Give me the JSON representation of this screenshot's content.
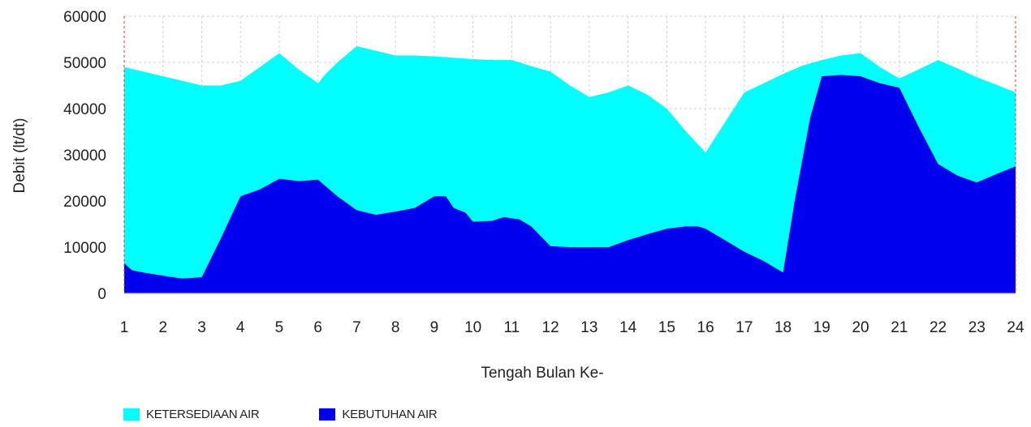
{
  "chart_data": {
    "type": "area",
    "xlabel": "Tengah Bulan Ke-",
    "ylabel": "Debit (lt/dt)",
    "ylim": [
      0,
      60000
    ],
    "yticks": [
      0,
      10000,
      20000,
      30000,
      40000,
      50000,
      60000
    ],
    "xlim": [
      1,
      24
    ],
    "xticks": [
      "1",
      "2",
      "3",
      "4",
      "5",
      "6",
      "7",
      "8",
      "9",
      "10",
      "11",
      "12",
      "13",
      "14",
      "15",
      "16",
      "17",
      "18",
      "19",
      "20",
      "21",
      "22",
      "23",
      "24"
    ],
    "grid": true,
    "legend_position": "bottom-left",
    "series": [
      {
        "name": "KETERSEDIAAN AIR",
        "color": "#00ffff",
        "points": [
          [
            1,
            49000
          ],
          [
            2,
            47000
          ],
          [
            2.5,
            46000
          ],
          [
            3,
            45000
          ],
          [
            3.5,
            45000
          ],
          [
            4,
            46000
          ],
          [
            4.5,
            49000
          ],
          [
            5,
            52000
          ],
          [
            5.5,
            48500
          ],
          [
            6,
            45500
          ],
          [
            6.2,
            47500
          ],
          [
            6.5,
            50000
          ],
          [
            7,
            53500
          ],
          [
            7.5,
            52500
          ],
          [
            8,
            51500
          ],
          [
            8.5,
            51500
          ],
          [
            9,
            51300
          ],
          [
            9.5,
            51000
          ],
          [
            10,
            50700
          ],
          [
            10.5,
            50500
          ],
          [
            11,
            50500
          ],
          [
            11.5,
            49200
          ],
          [
            12,
            48000
          ],
          [
            12.5,
            45000
          ],
          [
            13,
            42500
          ],
          [
            13.5,
            43500
          ],
          [
            14,
            45000
          ],
          [
            14.5,
            43000
          ],
          [
            15,
            40000
          ],
          [
            15.5,
            35000
          ],
          [
            16,
            30500
          ],
          [
            16.5,
            37000
          ],
          [
            17,
            43500
          ],
          [
            17.5,
            45500
          ],
          [
            18,
            47500
          ],
          [
            18.5,
            49300
          ],
          [
            19,
            50500
          ],
          [
            19.5,
            51500
          ],
          [
            20,
            52000
          ],
          [
            20.5,
            49000
          ],
          [
            21,
            46500
          ],
          [
            21.5,
            48500
          ],
          [
            22,
            50500
          ],
          [
            22.5,
            48700
          ],
          [
            23,
            46800
          ],
          [
            23.5,
            45200
          ],
          [
            24,
            43500
          ]
        ]
      },
      {
        "name": "KEBUTUHAN AIR",
        "color": "#0000ee",
        "points": [
          [
            1,
            6500
          ],
          [
            1.2,
            5000
          ],
          [
            1.5,
            4500
          ],
          [
            2,
            3800
          ],
          [
            2.5,
            3200
          ],
          [
            3,
            3500
          ],
          [
            3.5,
            12000
          ],
          [
            4,
            21000
          ],
          [
            4.5,
            22500
          ],
          [
            5,
            24800
          ],
          [
            5.5,
            24300
          ],
          [
            6,
            24600
          ],
          [
            6.5,
            21000
          ],
          [
            7,
            18000
          ],
          [
            7.5,
            17000
          ],
          [
            8,
            17700
          ],
          [
            8.5,
            18500
          ],
          [
            9,
            21000
          ],
          [
            9.3,
            21000
          ],
          [
            9.5,
            18500
          ],
          [
            9.8,
            17500
          ],
          [
            10,
            15500
          ],
          [
            10.5,
            15700
          ],
          [
            10.8,
            16500
          ],
          [
            11.2,
            16000
          ],
          [
            11.5,
            14500
          ],
          [
            12,
            10200
          ],
          [
            12.5,
            10000
          ],
          [
            13,
            10000
          ],
          [
            13.5,
            10000
          ],
          [
            14,
            11500
          ],
          [
            14.5,
            12800
          ],
          [
            15,
            14000
          ],
          [
            15.5,
            14500
          ],
          [
            15.8,
            14500
          ],
          [
            16,
            14000
          ],
          [
            16.5,
            11500
          ],
          [
            17,
            9000
          ],
          [
            17.5,
            7000
          ],
          [
            18,
            4500
          ],
          [
            18.3,
            20000
          ],
          [
            18.7,
            38000
          ],
          [
            19,
            47000
          ],
          [
            19.5,
            47300
          ],
          [
            20,
            47000
          ],
          [
            20.5,
            45500
          ],
          [
            21,
            44500
          ],
          [
            21.5,
            36000
          ],
          [
            22,
            28000
          ],
          [
            22.5,
            25500
          ],
          [
            23,
            24000
          ],
          [
            23.5,
            25800
          ],
          [
            24,
            27500
          ]
        ]
      }
    ]
  }
}
